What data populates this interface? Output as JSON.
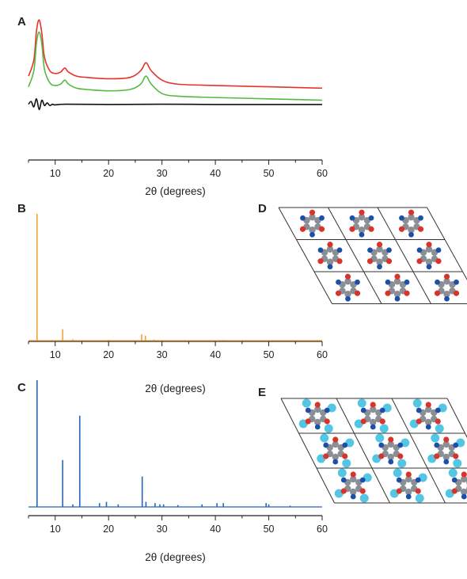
{
  "panels": {
    "A": "A",
    "B": "B",
    "C": "C",
    "D": "D",
    "E": "E"
  },
  "chart_data": [
    {
      "type": "line",
      "panel": "A",
      "xlabel": "2θ (degrees)",
      "ylabel": "",
      "xlim": [
        5,
        60
      ],
      "xticks": [
        10,
        20,
        30,
        40,
        50,
        60
      ],
      "grid": false,
      "series": [
        {
          "color": "#e8332a",
          "x": [
            5,
            6,
            6.5,
            7,
            7.5,
            8,
            9,
            10,
            11,
            11.8,
            12.5,
            14,
            16,
            20,
            24,
            26,
            27,
            28,
            30,
            33,
            40,
            50,
            60
          ],
          "y": [
            0.58,
            0.7,
            0.92,
            1.0,
            0.9,
            0.72,
            0.62,
            0.6,
            0.61,
            0.64,
            0.61,
            0.58,
            0.57,
            0.56,
            0.57,
            0.62,
            0.68,
            0.62,
            0.55,
            0.52,
            0.51,
            0.5,
            0.49
          ]
        },
        {
          "color": "#55b940",
          "x": [
            5,
            6,
            6.5,
            7,
            7.5,
            8,
            9,
            10,
            11,
            11.8,
            12.5,
            14,
            16,
            20,
            24,
            26,
            27,
            28,
            30,
            33,
            40,
            50,
            60
          ],
          "y": [
            0.5,
            0.62,
            0.83,
            0.91,
            0.82,
            0.63,
            0.53,
            0.51,
            0.52,
            0.55,
            0.52,
            0.49,
            0.48,
            0.47,
            0.48,
            0.52,
            0.58,
            0.52,
            0.45,
            0.43,
            0.42,
            0.41,
            0.4
          ]
        },
        {
          "color": "#111111",
          "x": [
            5,
            5.5,
            6,
            6.5,
            7,
            7.5,
            8,
            8.5,
            9,
            9.5,
            10,
            12,
            20,
            30,
            40,
            50,
            60
          ],
          "y": [
            0.37,
            0.39,
            0.35,
            0.41,
            0.33,
            0.4,
            0.36,
            0.38,
            0.36,
            0.37,
            0.365,
            0.37,
            0.368,
            0.37,
            0.368,
            0.368,
            0.368
          ]
        }
      ]
    },
    {
      "type": "line",
      "panel": "B",
      "xlabel": "2θ (degrees)",
      "ylabel": "",
      "xlim": [
        5,
        60
      ],
      "xticks": [
        10,
        20,
        30,
        40,
        50,
        60
      ],
      "grid": false,
      "series": [
        {
          "color": "#f4a13a",
          "peaks": [
            [
              6.6,
              1.0
            ],
            [
              11.4,
              0.09
            ],
            [
              13.3,
              0.01
            ],
            [
              20.0,
              0.006
            ],
            [
              26.2,
              0.05
            ],
            [
              26.9,
              0.04
            ],
            [
              28.5,
              0.008
            ],
            [
              41.4,
              0.005
            ],
            [
              50.0,
              0.004
            ]
          ]
        }
      ]
    },
    {
      "type": "line",
      "panel": "C",
      "xlabel": "2θ (degrees)",
      "ylabel": "",
      "xlim": [
        5,
        60
      ],
      "xticks": [
        10,
        20,
        30,
        40,
        50,
        60
      ],
      "grid": false,
      "series": [
        {
          "color": "#2667b4",
          "peaks": [
            [
              6.6,
              1.0
            ],
            [
              11.4,
              0.37
            ],
            [
              13.3,
              0.02
            ],
            [
              14.6,
              0.72
            ],
            [
              18.3,
              0.03
            ],
            [
              19.6,
              0.04
            ],
            [
              21.8,
              0.02
            ],
            [
              26.3,
              0.24
            ],
            [
              27.0,
              0.04
            ],
            [
              28.7,
              0.03
            ],
            [
              29.6,
              0.02
            ],
            [
              30.3,
              0.02
            ],
            [
              33.0,
              0.015
            ],
            [
              37.5,
              0.02
            ],
            [
              40.3,
              0.03
            ],
            [
              41.5,
              0.03
            ],
            [
              49.5,
              0.03
            ],
            [
              50.0,
              0.02
            ],
            [
              54.0,
              0.01
            ]
          ]
        }
      ]
    }
  ],
  "structures": {
    "D": {
      "atom_colors": {
        "carbon": "#8a8f96",
        "oxygen": "#d8342c",
        "nitrogen": "#1d4fa8"
      }
    },
    "E": {
      "atom_colors": {
        "carbon": "#8a8f96",
        "oxygen": "#d8342c",
        "nitrogen": "#1d4fa8",
        "guest": "#54c6e4"
      }
    }
  }
}
